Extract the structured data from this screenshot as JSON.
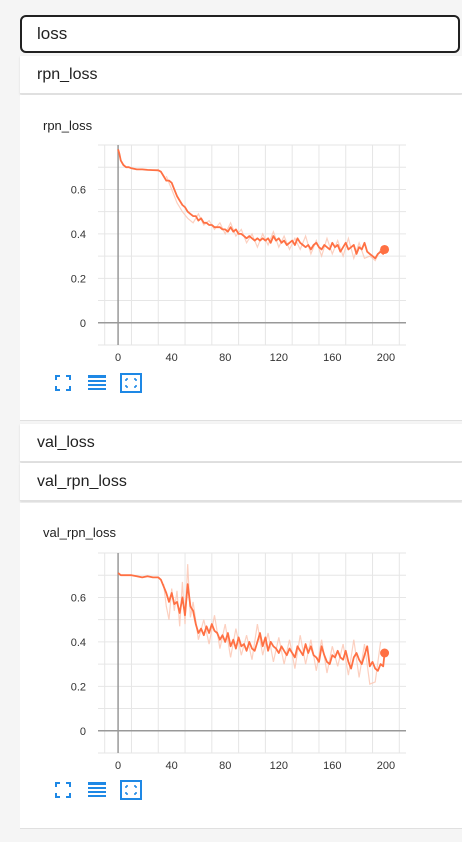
{
  "search": {
    "value": "loss"
  },
  "groups": {
    "rpn_loss": "rpn_loss",
    "val_loss": "val_loss",
    "val_rpn_loss": "val_rpn_loss"
  },
  "colors": {
    "accent": "#ff7043",
    "smoothed": "#ff7043",
    "raw": "#fbc4b0",
    "icon": "#1e88e5"
  },
  "toolbar_icons": [
    "fullscreen-icon",
    "data-table-icon",
    "fit-domain-icon"
  ],
  "chart_data": [
    {
      "type": "line",
      "title": "rpn_loss",
      "xlabel": "",
      "ylabel": "",
      "xlim": [
        -15,
        215
      ],
      "ylim": [
        -0.1,
        0.8
      ],
      "xticks": [
        0,
        40,
        80,
        120,
        160,
        200
      ],
      "yticks": [
        0,
        0.2,
        0.4,
        0.6
      ],
      "grid": true,
      "series": [
        {
          "kind": "smoothed",
          "x": [
            0,
            1,
            2,
            4,
            6,
            8,
            10,
            14,
            18,
            22,
            26,
            30,
            32,
            34,
            36,
            38,
            40,
            42,
            44,
            46,
            48,
            50,
            52,
            54,
            56,
            58,
            60,
            62,
            64,
            66,
            68,
            70,
            72,
            74,
            76,
            78,
            80,
            82,
            84,
            86,
            88,
            90,
            92,
            94,
            96,
            98,
            100,
            102,
            104,
            106,
            108,
            110,
            112,
            114,
            116,
            118,
            120,
            122,
            124,
            126,
            128,
            130,
            132,
            134,
            136,
            138,
            140,
            142,
            144,
            146,
            148,
            150,
            152,
            154,
            156,
            158,
            160,
            162,
            164,
            166,
            168,
            170,
            172,
            174,
            176,
            178,
            180,
            182,
            184,
            186,
            188,
            190,
            192,
            194,
            196,
            198,
            199
          ],
          "y": [
            0.78,
            0.76,
            0.73,
            0.71,
            0.7,
            0.7,
            0.695,
            0.69,
            0.69,
            0.688,
            0.687,
            0.686,
            0.68,
            0.66,
            0.64,
            0.64,
            0.63,
            0.6,
            0.57,
            0.55,
            0.53,
            0.52,
            0.5,
            0.49,
            0.48,
            0.48,
            0.46,
            0.47,
            0.45,
            0.45,
            0.44,
            0.44,
            0.43,
            0.43,
            0.43,
            0.42,
            0.42,
            0.41,
            0.43,
            0.41,
            0.42,
            0.4,
            0.4,
            0.39,
            0.38,
            0.39,
            0.38,
            0.37,
            0.38,
            0.37,
            0.38,
            0.37,
            0.38,
            0.36,
            0.39,
            0.37,
            0.38,
            0.36,
            0.37,
            0.35,
            0.36,
            0.37,
            0.35,
            0.38,
            0.36,
            0.35,
            0.34,
            0.35,
            0.33,
            0.35,
            0.36,
            0.34,
            0.33,
            0.35,
            0.34,
            0.33,
            0.36,
            0.34,
            0.35,
            0.32,
            0.34,
            0.36,
            0.33,
            0.34,
            0.35,
            0.31,
            0.34,
            0.33,
            0.36,
            0.32,
            0.31,
            0.3,
            0.29,
            0.31,
            0.32,
            0.31,
            0.33
          ]
        },
        {
          "kind": "raw",
          "x": [
            36,
            40,
            44,
            48,
            52,
            56,
            60,
            64,
            68,
            72,
            76,
            80,
            84,
            88,
            92,
            96,
            100,
            104,
            108,
            112,
            116,
            120,
            124,
            128,
            132,
            136,
            140,
            144,
            148,
            152,
            156,
            160,
            164,
            168,
            172,
            176,
            180,
            184,
            188,
            192,
            196
          ],
          "y": [
            0.66,
            0.6,
            0.54,
            0.5,
            0.47,
            0.45,
            0.49,
            0.44,
            0.46,
            0.42,
            0.45,
            0.4,
            0.45,
            0.39,
            0.42,
            0.36,
            0.4,
            0.34,
            0.4,
            0.35,
            0.41,
            0.34,
            0.39,
            0.33,
            0.38,
            0.33,
            0.39,
            0.31,
            0.37,
            0.3,
            0.38,
            0.31,
            0.37,
            0.3,
            0.38,
            0.29,
            0.36,
            0.29,
            0.3,
            0.28,
            0.33
          ]
        }
      ],
      "last_point": {
        "x": 199,
        "y": 0.33
      }
    },
    {
      "type": "line",
      "title": "val_rpn_loss",
      "xlabel": "",
      "ylabel": "",
      "xlim": [
        -15,
        215
      ],
      "ylim": [
        -0.1,
        0.8
      ],
      "xticks": [
        0,
        40,
        80,
        120,
        160,
        200
      ],
      "yticks": [
        0,
        0.2,
        0.4,
        0.6
      ],
      "grid": true,
      "series": [
        {
          "kind": "smoothed",
          "x": [
            0,
            2,
            6,
            10,
            14,
            18,
            22,
            26,
            30,
            32,
            34,
            36,
            38,
            40,
            42,
            44,
            46,
            48,
            50,
            52,
            54,
            56,
            58,
            60,
            62,
            64,
            66,
            68,
            70,
            72,
            74,
            76,
            78,
            80,
            82,
            84,
            86,
            88,
            90,
            92,
            94,
            96,
            98,
            100,
            102,
            104,
            106,
            108,
            110,
            112,
            114,
            116,
            118,
            120,
            122,
            124,
            126,
            128,
            130,
            132,
            134,
            136,
            138,
            140,
            142,
            144,
            146,
            148,
            150,
            152,
            154,
            156,
            158,
            160,
            162,
            164,
            166,
            168,
            170,
            172,
            174,
            176,
            178,
            180,
            182,
            184,
            186,
            188,
            190,
            192,
            194,
            196,
            198,
            199
          ],
          "y": [
            0.71,
            0.7,
            0.7,
            0.7,
            0.695,
            0.69,
            0.695,
            0.69,
            0.69,
            0.68,
            0.65,
            0.62,
            0.58,
            0.62,
            0.57,
            0.58,
            0.53,
            0.6,
            0.52,
            0.66,
            0.56,
            0.54,
            0.48,
            0.44,
            0.46,
            0.43,
            0.47,
            0.44,
            0.48,
            0.45,
            0.44,
            0.41,
            0.43,
            0.4,
            0.44,
            0.38,
            0.41,
            0.37,
            0.42,
            0.38,
            0.39,
            0.36,
            0.4,
            0.37,
            0.36,
            0.4,
            0.44,
            0.38,
            0.42,
            0.36,
            0.4,
            0.38,
            0.37,
            0.35,
            0.38,
            0.36,
            0.34,
            0.37,
            0.35,
            0.33,
            0.38,
            0.36,
            0.34,
            0.39,
            0.35,
            0.38,
            0.34,
            0.33,
            0.31,
            0.38,
            0.34,
            0.31,
            0.3,
            0.34,
            0.33,
            0.36,
            0.33,
            0.32,
            0.36,
            0.31,
            0.28,
            0.33,
            0.35,
            0.32,
            0.3,
            0.34,
            0.38,
            0.29,
            0.31,
            0.28,
            0.27,
            0.3,
            0.29,
            0.35
          ]
        },
        {
          "kind": "raw",
          "x": [
            34,
            36,
            38,
            40,
            42,
            44,
            46,
            48,
            50,
            52,
            54,
            56,
            60,
            64,
            68,
            72,
            76,
            80,
            84,
            88,
            92,
            96,
            100,
            104,
            108,
            112,
            116,
            120,
            124,
            128,
            132,
            136,
            140,
            144,
            148,
            152,
            156,
            160,
            164,
            168,
            172,
            176,
            180,
            184,
            188,
            192,
            196
          ],
          "y": [
            0.66,
            0.56,
            0.5,
            0.64,
            0.54,
            0.63,
            0.47,
            0.67,
            0.48,
            0.75,
            0.51,
            0.58,
            0.41,
            0.5,
            0.39,
            0.52,
            0.37,
            0.48,
            0.33,
            0.46,
            0.34,
            0.43,
            0.32,
            0.48,
            0.34,
            0.44,
            0.31,
            0.42,
            0.3,
            0.41,
            0.28,
            0.43,
            0.3,
            0.41,
            0.27,
            0.41,
            0.26,
            0.38,
            0.29,
            0.39,
            0.25,
            0.41,
            0.24,
            0.39,
            0.21,
            0.22,
            0.4
          ]
        }
      ],
      "last_point": {
        "x": 199,
        "y": 0.35
      }
    }
  ]
}
